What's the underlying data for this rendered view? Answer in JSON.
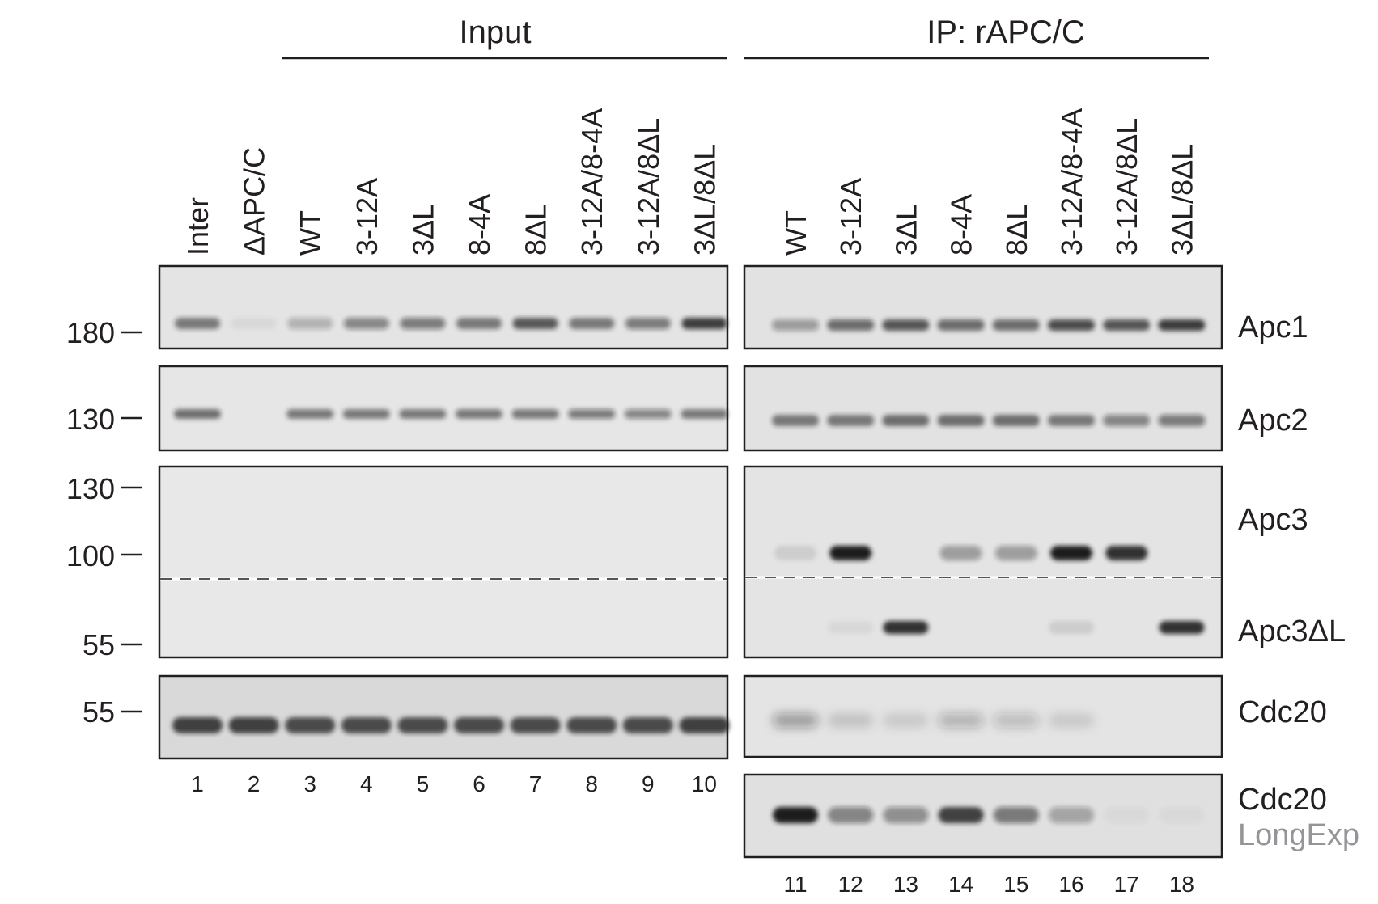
{
  "groups": [
    {
      "title": "Input"
    },
    {
      "title": "IP: rAPC/C"
    }
  ],
  "lane_labels": {
    "input": [
      "Inter",
      "ΔAPC/C",
      "WT",
      "3-12A",
      "3ΔL",
      "8-4A",
      "8ΔL",
      "3-12A/8-4A",
      "3-12A/8ΔL",
      "3ΔL/8ΔL"
    ],
    "ip": [
      "WT",
      "3-12A",
      "3ΔL",
      "8-4A",
      "8ΔL",
      "3-12A/8-4A",
      "3-12A/8ΔL",
      "3ΔL/8ΔL"
    ]
  },
  "lane_numbers": {
    "input": [
      "1",
      "2",
      "3",
      "4",
      "5",
      "6",
      "7",
      "8",
      "9",
      "10"
    ],
    "ip": [
      "11",
      "12",
      "13",
      "14",
      "15",
      "16",
      "17",
      "18"
    ]
  },
  "markers": [
    "180",
    "130",
    "130",
    "100",
    "55",
    "55"
  ],
  "protein_labels": {
    "apc1": "Apc1",
    "apc2": "Apc2",
    "apc3": "Apc3",
    "apc3dl": "Apc3ΔL",
    "cdc20": "Cdc20",
    "cdc20_long": "Cdc20",
    "cdc20_long_sub": "LongExp"
  },
  "colors": {
    "text": "#231f20",
    "panel_border": "#231f20",
    "membrane": "#e4e4e4",
    "band": "#1c1c1c",
    "sub_label": "#939598"
  },
  "band_intensity": {
    "apc1_input": [
      0.55,
      0.05,
      0.25,
      0.45,
      0.5,
      0.55,
      0.7,
      0.55,
      0.5,
      0.85
    ],
    "apc1_ip": [
      0.35,
      0.6,
      0.7,
      0.6,
      0.6,
      0.75,
      0.7,
      0.85
    ],
    "apc2_input": [
      0.6,
      0,
      0.55,
      0.55,
      0.55,
      0.55,
      0.55,
      0.5,
      0.45,
      0.55
    ],
    "apc2_ip": [
      0.55,
      0.55,
      0.6,
      0.6,
      0.6,
      0.55,
      0.45,
      0.5
    ],
    "apc3_ip": [
      0.1,
      1.0,
      0,
      0.35,
      0.35,
      1.0,
      0.9,
      0
    ],
    "apc3dl_ip": [
      0,
      0.05,
      0.9,
      0,
      0,
      0.1,
      0,
      0.9
    ],
    "cdc20_input": [
      0.8,
      0.8,
      0.75,
      0.75,
      0.75,
      0.75,
      0.75,
      0.75,
      0.75,
      0.8
    ],
    "cdc20_ip": [
      0.35,
      0.15,
      0.12,
      0.25,
      0.2,
      0.12,
      0,
      0
    ],
    "cdc20_long_ip": [
      1.0,
      0.45,
      0.4,
      0.8,
      0.5,
      0.3,
      0.03,
      0.03
    ]
  }
}
